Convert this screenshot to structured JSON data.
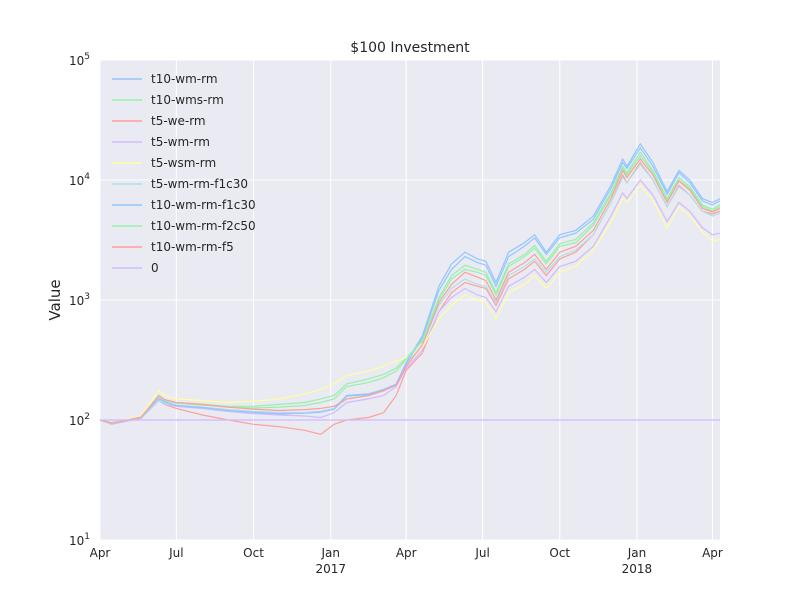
{
  "chart_data": {
    "type": "line",
    "title": "$100 Investment",
    "xlabel": "",
    "ylabel": "Value",
    "yscale": "log",
    "ylim": [
      10,
      100000
    ],
    "xlim": [
      "2016-04-01",
      "2018-04-10"
    ],
    "grid": true,
    "legend": "top-left",
    "y_ticks": [
      {
        "value": 10,
        "base": "10",
        "exp": "1"
      },
      {
        "value": 100,
        "base": "10",
        "exp": "2"
      },
      {
        "value": 1000,
        "base": "10",
        "exp": "3"
      },
      {
        "value": 10000,
        "base": "10",
        "exp": "4"
      },
      {
        "value": 100000,
        "base": "10",
        "exp": "5"
      }
    ],
    "x_ticks": [
      {
        "date": "2016-04-01",
        "label": "Apr",
        "year": ""
      },
      {
        "date": "2016-07-01",
        "label": "Jul",
        "year": ""
      },
      {
        "date": "2016-10-01",
        "label": "Oct",
        "year": ""
      },
      {
        "date": "2017-01-01",
        "label": "Jan",
        "year": "2017"
      },
      {
        "date": "2017-04-01",
        "label": "Apr",
        "year": ""
      },
      {
        "date": "2017-07-01",
        "label": "Jul",
        "year": ""
      },
      {
        "date": "2017-10-01",
        "label": "Oct",
        "year": ""
      },
      {
        "date": "2018-01-01",
        "label": "Jan",
        "year": "2018"
      },
      {
        "date": "2018-04-01",
        "label": "Apr",
        "year": ""
      }
    ],
    "series": [
      {
        "name": "t10-wm-rm",
        "color": "#92C6FF",
        "x": [
          "2016-04-01",
          "2016-04-15",
          "2016-05-01",
          "2016-05-20",
          "2016-06-10",
          "2016-06-17",
          "2016-07-01",
          "2016-08-01",
          "2016-09-01",
          "2016-10-01",
          "2016-11-01",
          "2016-12-01",
          "2016-12-20",
          "2017-01-05",
          "2017-01-20",
          "2017-02-15",
          "2017-03-05",
          "2017-03-20",
          "2017-04-01",
          "2017-04-20",
          "2017-05-10",
          "2017-05-25",
          "2017-06-10",
          "2017-06-25",
          "2017-07-05",
          "2017-07-17",
          "2017-08-01",
          "2017-08-20",
          "2017-09-01",
          "2017-09-15",
          "2017-10-01",
          "2017-10-20",
          "2017-11-10",
          "2017-12-01",
          "2017-12-15",
          "2017-12-20",
          "2018-01-05",
          "2018-01-20",
          "2018-02-06",
          "2018-02-20",
          "2018-03-05",
          "2018-03-20",
          "2018-04-01",
          "2018-04-10"
        ],
        "values": [
          100,
          95,
          100,
          105,
          150,
          140,
          130,
          125,
          118,
          115,
          112,
          115,
          118,
          125,
          160,
          165,
          180,
          200,
          300,
          500,
          1300,
          2000,
          2500,
          2200,
          2100,
          1400,
          2500,
          3000,
          3500,
          2500,
          3500,
          3800,
          5000,
          9000,
          15000,
          13000,
          20000,
          14000,
          8000,
          12000,
          10000,
          7000,
          6500,
          7000
        ]
      },
      {
        "name": "t10-wms-rm",
        "color": "#97F0AA",
        "x": [
          "2016-04-01",
          "2016-04-15",
          "2016-05-01",
          "2016-05-20",
          "2016-06-10",
          "2016-06-17",
          "2016-07-01",
          "2016-08-01",
          "2016-09-01",
          "2016-10-01",
          "2016-11-01",
          "2016-12-01",
          "2016-12-20",
          "2017-01-05",
          "2017-01-20",
          "2017-02-15",
          "2017-03-05",
          "2017-03-20",
          "2017-04-01",
          "2017-04-20",
          "2017-05-10",
          "2017-05-25",
          "2017-06-10",
          "2017-06-25",
          "2017-07-05",
          "2017-07-17",
          "2017-08-01",
          "2017-08-20",
          "2017-09-01",
          "2017-09-15",
          "2017-10-01",
          "2017-10-20",
          "2017-11-10",
          "2017-12-01",
          "2017-12-15",
          "2017-12-20",
          "2018-01-05",
          "2018-01-20",
          "2018-02-06",
          "2018-02-20",
          "2018-03-05",
          "2018-03-20",
          "2018-04-01",
          "2018-04-10"
        ],
        "values": [
          100,
          92,
          98,
          105,
          160,
          145,
          140,
          135,
          130,
          130,
          135,
          140,
          150,
          160,
          200,
          220,
          240,
          270,
          330,
          450,
          1000,
          1500,
          1800,
          1700,
          1600,
          1100,
          1900,
          2300,
          2700,
          2000,
          2800,
          3000,
          4200,
          7500,
          12500,
          11000,
          16000,
          11500,
          6800,
          10000,
          8500,
          6000,
          5500,
          6000
        ]
      },
      {
        "name": "t5-we-rm",
        "color": "#FF9F9A",
        "x": [
          "2016-04-01",
          "2016-04-15",
          "2016-05-01",
          "2016-05-20",
          "2016-06-10",
          "2016-06-17",
          "2016-07-01",
          "2016-08-01",
          "2016-09-01",
          "2016-10-01",
          "2016-11-01",
          "2016-12-01",
          "2016-12-20",
          "2017-01-05",
          "2017-01-20",
          "2017-02-15",
          "2017-03-05",
          "2017-03-20",
          "2017-04-01",
          "2017-04-20",
          "2017-05-10",
          "2017-05-25",
          "2017-06-10",
          "2017-06-25",
          "2017-07-05",
          "2017-07-17",
          "2017-08-01",
          "2017-08-20",
          "2017-09-01",
          "2017-09-15",
          "2017-10-01",
          "2017-10-20",
          "2017-11-10",
          "2017-12-01",
          "2017-12-15",
          "2017-12-20",
          "2018-01-05",
          "2018-01-20",
          "2018-02-06",
          "2018-02-20",
          "2018-03-05",
          "2018-03-20",
          "2018-04-01",
          "2018-04-10"
        ],
        "values": [
          100,
          93,
          98,
          104,
          150,
          135,
          125,
          110,
          100,
          92,
          88,
          82,
          76,
          92,
          100,
          105,
          115,
          160,
          260,
          360,
          800,
          1150,
          1400,
          1300,
          1250,
          900,
          1500,
          1800,
          2100,
          1600,
          2200,
          2500,
          3500,
          6500,
          11000,
          9500,
          14000,
          10000,
          6000,
          9000,
          7500,
          5500,
          5200,
          5500
        ]
      },
      {
        "name": "t5-wm-rm",
        "color": "#D0BBFF",
        "x": [
          "2016-04-01",
          "2016-04-15",
          "2016-05-01",
          "2016-05-20",
          "2016-06-10",
          "2016-06-17",
          "2016-07-01",
          "2016-08-01",
          "2016-09-01",
          "2016-10-01",
          "2016-11-01",
          "2016-12-01",
          "2016-12-20",
          "2017-01-05",
          "2017-01-20",
          "2017-02-15",
          "2017-03-05",
          "2017-03-20",
          "2017-04-01",
          "2017-04-20",
          "2017-05-10",
          "2017-05-25",
          "2017-06-10",
          "2017-06-25",
          "2017-07-05",
          "2017-07-17",
          "2017-08-01",
          "2017-08-20",
          "2017-09-01",
          "2017-09-15",
          "2017-10-01",
          "2017-10-20",
          "2017-11-10",
          "2017-12-01",
          "2017-12-15",
          "2017-12-20",
          "2018-01-05",
          "2018-01-20",
          "2018-02-06",
          "2018-02-20",
          "2018-03-05",
          "2018-03-20",
          "2018-04-01",
          "2018-04-10"
        ],
        "values": [
          100,
          92,
          97,
          103,
          145,
          135,
          130,
          125,
          118,
          113,
          110,
          108,
          105,
          115,
          140,
          150,
          160,
          190,
          270,
          380,
          800,
          1050,
          1250,
          1100,
          1050,
          800,
          1300,
          1550,
          1800,
          1400,
          1900,
          2100,
          2800,
          5000,
          7800,
          7000,
          10000,
          7500,
          4500,
          6500,
          5500,
          4000,
          3500,
          3600
        ]
      },
      {
        "name": "t5-wsm-rm",
        "color": "#FFFEA3",
        "x": [
          "2016-04-01",
          "2016-04-15",
          "2016-05-01",
          "2016-05-20",
          "2016-06-10",
          "2016-06-17",
          "2016-07-01",
          "2016-08-01",
          "2016-09-01",
          "2016-10-01",
          "2016-11-01",
          "2016-12-01",
          "2016-12-20",
          "2017-01-05",
          "2017-01-20",
          "2017-02-15",
          "2017-03-05",
          "2017-03-20",
          "2017-04-01",
          "2017-04-20",
          "2017-05-10",
          "2017-05-25",
          "2017-06-10",
          "2017-06-25",
          "2017-07-05",
          "2017-07-17",
          "2017-08-01",
          "2017-08-20",
          "2017-09-01",
          "2017-09-15",
          "2017-10-01",
          "2017-10-20",
          "2017-11-10",
          "2017-12-01",
          "2017-12-15",
          "2017-12-20",
          "2018-01-05",
          "2018-01-20",
          "2018-02-06",
          "2018-02-20",
          "2018-03-05",
          "2018-03-20",
          "2018-04-01",
          "2018-04-10"
        ],
        "values": [
          100,
          94,
          100,
          108,
          175,
          160,
          150,
          145,
          140,
          143,
          150,
          165,
          180,
          200,
          235,
          255,
          280,
          310,
          330,
          400,
          700,
          900,
          1100,
          1000,
          950,
          700,
          1150,
          1350,
          1600,
          1250,
          1700,
          1900,
          2600,
          4500,
          7000,
          6500,
          9000,
          6800,
          4000,
          6000,
          5000,
          3700,
          3100,
          3200
        ]
      },
      {
        "name": "t5-wm-rm-f1c30",
        "color": "#B0E0E6",
        "x": [
          "2016-04-01",
          "2016-04-15",
          "2016-05-01",
          "2016-05-20",
          "2016-06-10",
          "2016-06-17",
          "2016-07-01",
          "2016-08-01",
          "2016-09-01",
          "2016-10-01",
          "2016-11-01",
          "2016-12-01",
          "2016-12-20",
          "2017-01-05",
          "2017-01-20",
          "2017-02-15",
          "2017-03-05",
          "2017-03-20",
          "2017-04-01",
          "2017-04-20",
          "2017-05-10",
          "2017-05-25",
          "2017-06-10",
          "2017-06-25",
          "2017-07-05",
          "2017-07-17",
          "2017-08-01",
          "2017-08-20",
          "2017-09-01",
          "2017-09-15",
          "2017-10-01",
          "2017-10-20",
          "2017-11-10",
          "2017-12-01",
          "2017-12-15",
          "2017-12-20",
          "2018-01-05",
          "2018-01-20",
          "2018-02-06",
          "2018-02-20",
          "2018-03-05",
          "2018-03-20",
          "2018-04-01",
          "2018-04-10"
        ],
        "values": [
          100,
          93,
          99,
          104,
          148,
          138,
          133,
          128,
          122,
          118,
          116,
          115,
          117,
          125,
          150,
          160,
          175,
          200,
          290,
          420,
          900,
          1250,
          1500,
          1350,
          1300,
          950,
          1600,
          1900,
          2200,
          1700,
          2300,
          2600,
          3500,
          6500,
          10500,
          9500,
          13500,
          10000,
          6000,
          8800,
          7500,
          5500,
          5000,
          5300
        ]
      },
      {
        "name": "t10-wm-rm-f1c30",
        "color": "#92C6FF",
        "x": [
          "2016-04-01",
          "2016-04-15",
          "2016-05-01",
          "2016-05-20",
          "2016-06-10",
          "2016-06-17",
          "2016-07-01",
          "2016-08-01",
          "2016-09-01",
          "2016-10-01",
          "2016-11-01",
          "2016-12-01",
          "2016-12-20",
          "2017-01-05",
          "2017-01-20",
          "2017-02-15",
          "2017-03-05",
          "2017-03-20",
          "2017-04-01",
          "2017-04-20",
          "2017-05-10",
          "2017-05-25",
          "2017-06-10",
          "2017-06-25",
          "2017-07-05",
          "2017-07-17",
          "2017-08-01",
          "2017-08-20",
          "2017-09-01",
          "2017-09-15",
          "2017-10-01",
          "2017-10-20",
          "2017-11-10",
          "2017-12-01",
          "2017-12-15",
          "2017-12-20",
          "2018-01-05",
          "2018-01-20",
          "2018-02-06",
          "2018-02-20",
          "2018-03-05",
          "2018-03-20",
          "2018-04-01",
          "2018-04-10"
        ],
        "values": [
          100,
          94,
          99,
          105,
          152,
          142,
          132,
          127,
          120,
          116,
          113,
          114,
          116,
          123,
          158,
          163,
          178,
          198,
          295,
          480,
          1200,
          1800,
          2300,
          2050,
          1950,
          1300,
          2300,
          2800,
          3300,
          2400,
          3300,
          3600,
          4700,
          8500,
          14000,
          12500,
          18500,
          13000,
          7600,
          11500,
          9500,
          6700,
          6200,
          6700
        ]
      },
      {
        "name": "t10-wm-rm-f2c50",
        "color": "#97F0AA",
        "x": [
          "2016-04-01",
          "2016-04-15",
          "2016-05-01",
          "2016-05-20",
          "2016-06-10",
          "2016-06-17",
          "2016-07-01",
          "2016-08-01",
          "2016-09-01",
          "2016-10-01",
          "2016-11-01",
          "2016-12-01",
          "2016-12-20",
          "2017-01-05",
          "2017-01-20",
          "2017-02-15",
          "2017-03-05",
          "2017-03-20",
          "2017-04-01",
          "2017-04-20",
          "2017-05-10",
          "2017-05-25",
          "2017-06-10",
          "2017-06-25",
          "2017-07-05",
          "2017-07-17",
          "2017-08-01",
          "2017-08-20",
          "2017-09-01",
          "2017-09-15",
          "2017-10-01",
          "2017-10-20",
          "2017-11-10",
          "2017-12-01",
          "2017-12-15",
          "2017-12-20",
          "2018-01-05",
          "2018-01-20",
          "2018-02-06",
          "2018-02-20",
          "2018-03-05",
          "2018-03-20",
          "2018-04-01",
          "2018-04-10"
        ],
        "values": [
          100,
          93,
          99,
          106,
          158,
          145,
          138,
          133,
          128,
          126,
          128,
          132,
          140,
          150,
          190,
          205,
          225,
          255,
          320,
          460,
          1050,
          1600,
          1950,
          1800,
          1700,
          1150,
          2000,
          2400,
          2850,
          2100,
          2950,
          3200,
          4400,
          7800,
          13000,
          11500,
          17000,
          12000,
          7000,
          10500,
          8800,
          6200,
          5700,
          6200
        ]
      },
      {
        "name": "t10-wm-rm-f5",
        "color": "#FF9F9A",
        "x": [
          "2016-04-01",
          "2016-04-15",
          "2016-05-01",
          "2016-05-20",
          "2016-06-10",
          "2016-06-17",
          "2016-07-01",
          "2016-08-01",
          "2016-09-01",
          "2016-10-01",
          "2016-11-01",
          "2016-12-01",
          "2016-12-20",
          "2017-01-05",
          "2017-01-20",
          "2017-02-15",
          "2017-03-05",
          "2017-03-20",
          "2017-04-01",
          "2017-04-20",
          "2017-05-10",
          "2017-05-25",
          "2017-06-10",
          "2017-06-25",
          "2017-07-05",
          "2017-07-17",
          "2017-08-01",
          "2017-08-20",
          "2017-09-01",
          "2017-09-15",
          "2017-10-01",
          "2017-10-20",
          "2017-11-10",
          "2017-12-01",
          "2017-12-15",
          "2017-12-20",
          "2018-01-05",
          "2018-01-20",
          "2018-02-06",
          "2018-02-20",
          "2018-03-05",
          "2018-03-20",
          "2018-04-01",
          "2018-04-10"
        ],
        "values": [
          100,
          94,
          99,
          106,
          160,
          148,
          140,
          135,
          128,
          123,
          120,
          122,
          125,
          130,
          150,
          160,
          175,
          195,
          280,
          420,
          950,
          1350,
          1700,
          1550,
          1450,
          1000,
          1700,
          2050,
          2400,
          1800,
          2500,
          2800,
          3800,
          7000,
          12000,
          10500,
          15000,
          11000,
          6500,
          9800,
          8200,
          5800,
          5400,
          5800
        ]
      },
      {
        "name": "0",
        "color": "#D0BBFF",
        "x": [
          "2016-04-01",
          "2018-04-10"
        ],
        "values": [
          100,
          100
        ]
      }
    ]
  }
}
